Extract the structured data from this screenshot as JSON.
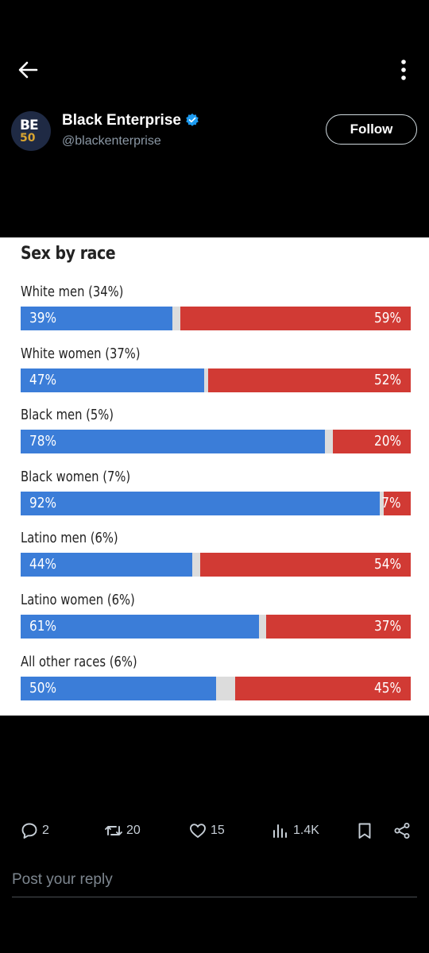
{
  "author": {
    "name": "Black Enterprise",
    "handle": "@blackenterprise",
    "avatar_text": "BE",
    "avatar_sub": "50",
    "follow_label": "Follow"
  },
  "chart_data": {
    "type": "bar",
    "title": "Sex by race",
    "categories": [
      "White men (34%)",
      "White women (37%)",
      "Black men (5%)",
      "Black women (7%)",
      "Latino men (6%)",
      "Latino women (6%)",
      "All other races (6%)"
    ],
    "series": [
      {
        "color": "#3b7dd8",
        "values": [
          39,
          47,
          78,
          92,
          44,
          61,
          50
        ]
      },
      {
        "color": "#d13a34",
        "values": [
          59,
          52,
          20,
          7,
          54,
          37,
          45
        ]
      }
    ],
    "labels_blue": [
      "39%",
      "47%",
      "78%",
      "92%",
      "44%",
      "61%",
      "50%"
    ],
    "labels_red": [
      "59%",
      "52%",
      "20%",
      "7%",
      "54%",
      "37%",
      "45%"
    ]
  },
  "actions": {
    "replies": "2",
    "reposts": "20",
    "likes": "15",
    "views": "1.4K"
  },
  "reply": {
    "placeholder": "Post your reply"
  },
  "colors": {
    "accent": "#1d9bf0",
    "blue": "#3b7dd8",
    "red": "#d13a34"
  }
}
